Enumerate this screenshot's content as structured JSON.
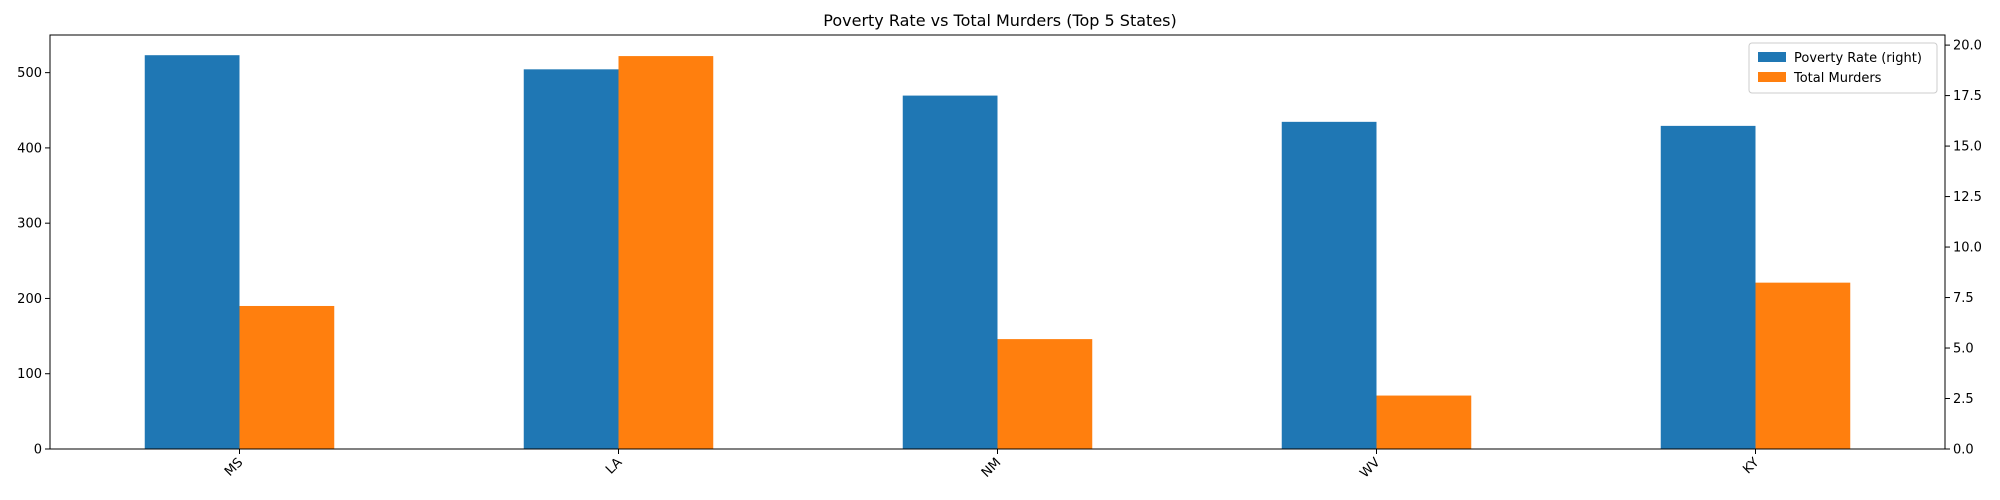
{
  "chart_data": {
    "type": "bar",
    "title": "Poverty Rate vs Total Murders (Top 5 States)",
    "xlabel": "",
    "ylabel": "",
    "categories": [
      "MS",
      "LA",
      "NM",
      "WV",
      "KY"
    ],
    "series": [
      {
        "name": "Poverty Rate (right)",
        "axis": "right",
        "color": "#1f77b4",
        "values": [
          19.5,
          18.8,
          17.5,
          16.2,
          16.0
        ]
      },
      {
        "name": "Total Murders",
        "axis": "left",
        "color": "#ff7f0e",
        "values": [
          190,
          522,
          146,
          71,
          221
        ]
      }
    ],
    "ylim_left": [
      0,
      550
    ],
    "ylim_right": [
      0,
      20.5
    ],
    "left_ticks": [
      0,
      100,
      200,
      300,
      400,
      500
    ],
    "right_ticks": [
      "0.0",
      "2.5",
      "5.0",
      "7.5",
      "10.0",
      "12.5",
      "15.0",
      "17.5",
      "20.0"
    ],
    "grid": false,
    "legend_position": "top-right"
  }
}
